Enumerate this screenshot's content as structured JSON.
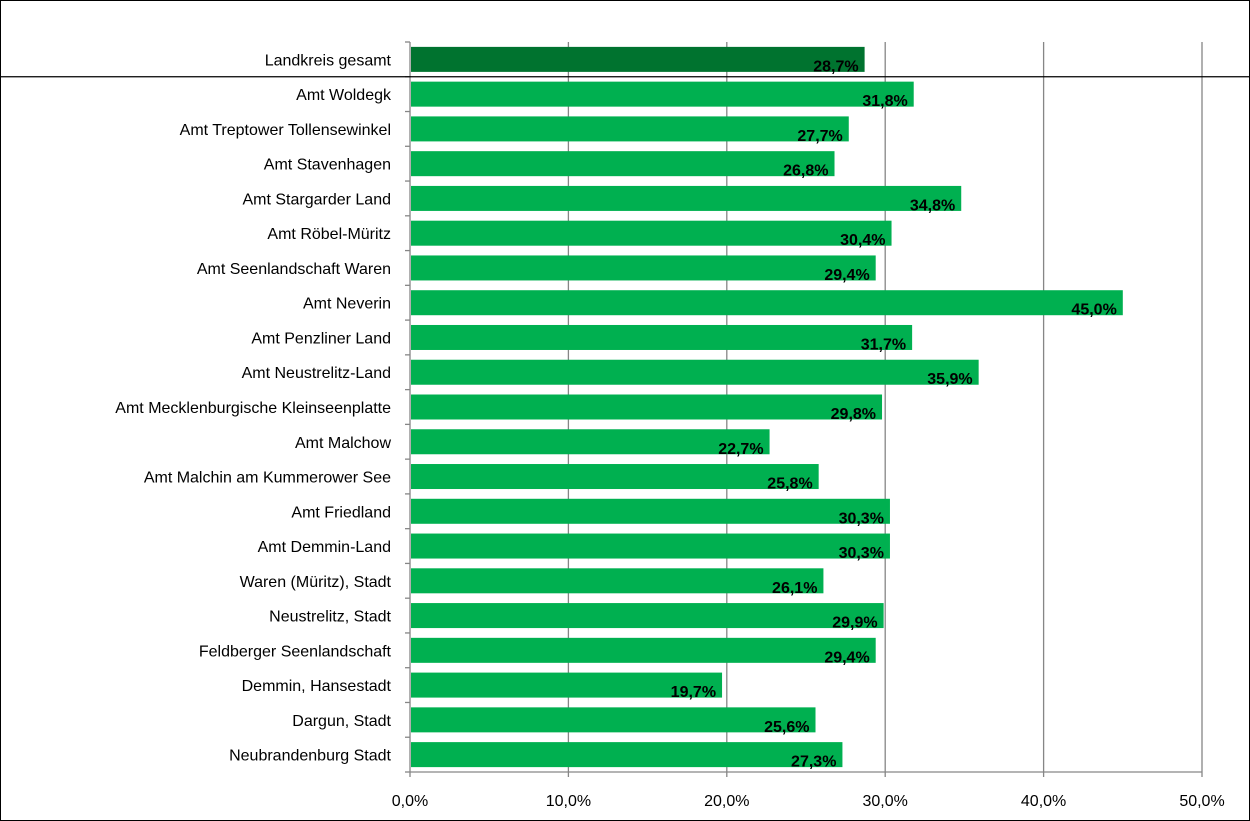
{
  "chart_data": {
    "type": "bar",
    "orientation": "horizontal",
    "categories": [
      "Landkreis gesamt",
      "Amt Woldegk",
      "Amt Treptower Tollensewinkel",
      "Amt Stavenhagen",
      "Amt Stargarder Land",
      "Amt Röbel-Müritz",
      "Amt Seenlandschaft Waren",
      "Amt Neverin",
      "Amt Penzliner Land",
      "Amt Neustrelitz-Land",
      "Amt Mecklenburgische Kleinseenplatte",
      "Amt Malchow",
      "Amt Malchin am Kummerower See",
      "Amt Friedland",
      "Amt Demmin-Land",
      "Waren (Müritz), Stadt",
      "Neustrelitz, Stadt",
      "Feldberger Seenlandschaft",
      "Demmin, Hansestadt",
      "Dargun, Stadt",
      "Neubrandenburg Stadt"
    ],
    "values": [
      28.7,
      31.8,
      27.7,
      26.8,
      34.8,
      30.4,
      29.4,
      45.0,
      31.7,
      35.9,
      29.8,
      22.7,
      25.8,
      30.3,
      30.3,
      26.1,
      29.9,
      29.4,
      19.7,
      25.6,
      27.3
    ],
    "value_labels": [
      "28,7%",
      "31,8%",
      "27,7%",
      "26,8%",
      "34,8%",
      "30,4%",
      "29,4%",
      "45,0%",
      "31,7%",
      "35,9%",
      "29,8%",
      "22,7%",
      "25,8%",
      "30,3%",
      "30,3%",
      "26,1%",
      "29,9%",
      "29,4%",
      "19,7%",
      "25,6%",
      "27,3%"
    ],
    "xlim": [
      0,
      50
    ],
    "xticks": [
      0,
      10,
      20,
      30,
      40,
      50
    ],
    "xtick_labels": [
      "0,0%",
      "10,0%",
      "20,0%",
      "30,0%",
      "40,0%",
      "50,0%"
    ],
    "title": "",
    "xlabel": "",
    "ylabel": "",
    "grid": "vertical",
    "legend": "none",
    "colors": {
      "bar": "#00b050",
      "bar_highlight": "#00732f",
      "grid": "#868686",
      "axis": "#868686",
      "frame": "#000000"
    }
  }
}
